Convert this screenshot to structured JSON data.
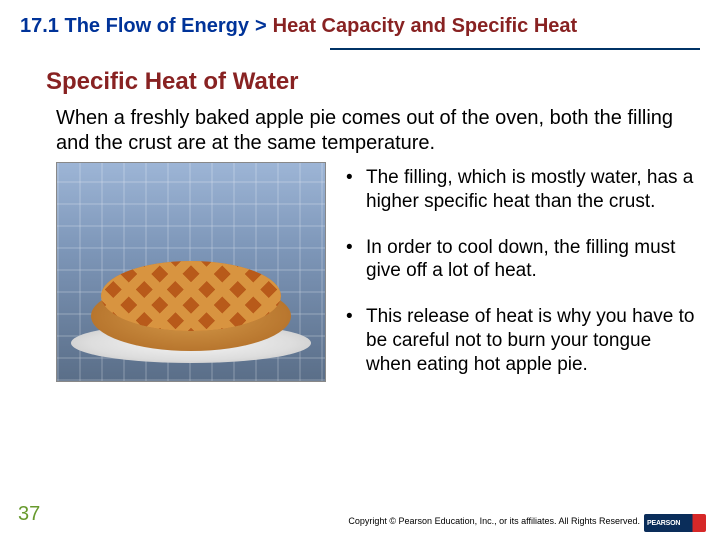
{
  "breadcrumb": {
    "section": "17.1 The Flow of Energy",
    "arrow": ">",
    "topic": "Heat Capacity and Specific Heat"
  },
  "subtitle": "Specific Heat of Water",
  "intro": "When a freshly baked apple pie comes out of the oven, both the filling and the crust are at the same temperature.",
  "bullets": [
    "The filling, which is mostly water, has a higher specific heat than the crust.",
    "In order to cool down, the filling must give off a lot of heat.",
    "This release of heat is why you have to be careful not to burn your tongue when eating hot apple pie."
  ],
  "page_number": "37",
  "copyright": "Copyright © Pearson Education, Inc., or its affiliates. All Rights Reserved.",
  "logo": "PEARSON",
  "colors": {
    "section_color": "#003399",
    "topic_color": "#882222",
    "page_num_color": "#689a2e",
    "logo_blue": "#0a2d5a",
    "logo_red": "#d62828"
  }
}
